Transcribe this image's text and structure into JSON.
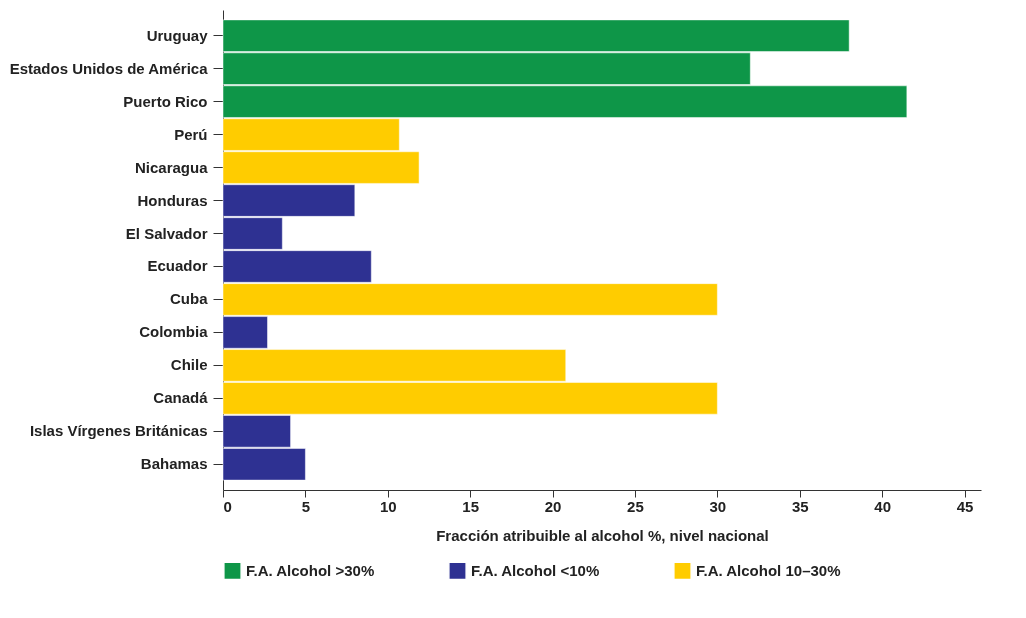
{
  "chart_data": {
    "type": "bar",
    "orientation": "horizontal",
    "xlabel": "Fracción atribuible al alcohol %, nivel nacional",
    "categories": [
      "Uruguay",
      "Estados Unidos de América",
      "Puerto Rico",
      "Perú",
      "Nicaragua",
      "Honduras",
      "El Salvador",
      "Ecuador",
      "Cuba",
      "Colombia",
      "Chile",
      "Canadá",
      "Islas Vírgenes Británicas",
      "Bahamas"
    ],
    "series": [
      {
        "name": "F.A. Alcohol >30%",
        "color": "#0e9648",
        "values": [
          38,
          32,
          41.5,
          null,
          null,
          null,
          null,
          null,
          null,
          null,
          null,
          null,
          null,
          null
        ]
      },
      {
        "name": "F.A. Alcohol <10%",
        "color": "#2e3192",
        "values": [
          null,
          null,
          null,
          null,
          null,
          8,
          3.6,
          9,
          null,
          2.7,
          null,
          null,
          4.1,
          5
        ]
      },
      {
        "name": "F.A. Alcohol 10–30%",
        "color": "#ffcc00",
        "values": [
          null,
          null,
          null,
          10.7,
          11.9,
          null,
          null,
          null,
          30,
          null,
          20.8,
          30,
          null,
          null
        ]
      }
    ],
    "xlim": [
      0,
      46
    ],
    "xticks": [
      0,
      5,
      10,
      15,
      20,
      25,
      30,
      35,
      40,
      45
    ],
    "grid": false,
    "legend": "bottom"
  }
}
